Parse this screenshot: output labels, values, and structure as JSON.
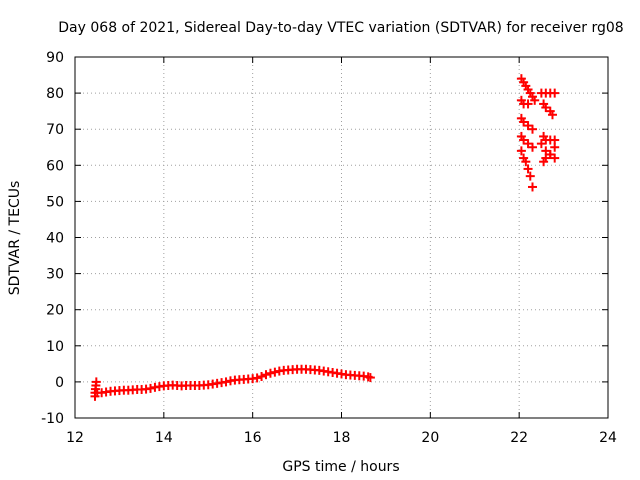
{
  "chart_data": {
    "type": "scatter",
    "title": "Day 068 of 2021, Sidereal Day-to-day VTEC variation (SDTVAR) for receiver rg08",
    "xlabel": "GPS time / hours",
    "ylabel": "SDTVAR / TECUs",
    "xlim": [
      12,
      24
    ],
    "ylim": [
      -10,
      90
    ],
    "x_ticks": [
      12,
      14,
      16,
      18,
      20,
      22,
      24
    ],
    "y_ticks": [
      -10,
      0,
      10,
      20,
      30,
      40,
      50,
      60,
      70,
      80,
      90
    ],
    "grid": true,
    "legend": "none",
    "series": [
      {
        "color": "#ff0000",
        "marker": "plus",
        "points": [
          [
            12.45,
            -4.0
          ],
          [
            12.45,
            -3.0
          ],
          [
            12.46,
            -2.0
          ],
          [
            12.47,
            -1.0
          ],
          [
            12.48,
            0.0
          ],
          [
            12.5,
            -3.0
          ],
          [
            12.6,
            -3.0
          ],
          [
            12.7,
            -2.8
          ],
          [
            12.8,
            -2.6
          ],
          [
            12.9,
            -2.5
          ],
          [
            13.0,
            -2.4
          ],
          [
            13.1,
            -2.3
          ],
          [
            13.2,
            -2.3
          ],
          [
            13.3,
            -2.2
          ],
          [
            13.4,
            -2.1
          ],
          [
            13.5,
            -2.1
          ],
          [
            13.6,
            -2.0
          ],
          [
            13.7,
            -1.8
          ],
          [
            13.8,
            -1.5
          ],
          [
            13.9,
            -1.3
          ],
          [
            14.0,
            -1.1
          ],
          [
            14.1,
            -1.0
          ],
          [
            14.2,
            -0.9
          ],
          [
            14.3,
            -1.0
          ],
          [
            14.4,
            -1.1
          ],
          [
            14.5,
            -1.0
          ],
          [
            14.6,
            -1.0
          ],
          [
            14.7,
            -1.0
          ],
          [
            14.8,
            -1.0
          ],
          [
            14.9,
            -0.9
          ],
          [
            15.0,
            -0.8
          ],
          [
            15.1,
            -0.6
          ],
          [
            15.2,
            -0.4
          ],
          [
            15.3,
            -0.2
          ],
          [
            15.4,
            0.0
          ],
          [
            15.5,
            0.3
          ],
          [
            15.6,
            0.5
          ],
          [
            15.7,
            0.6
          ],
          [
            15.8,
            0.7
          ],
          [
            15.9,
            0.8
          ],
          [
            16.0,
            0.9
          ],
          [
            16.1,
            1.1
          ],
          [
            16.2,
            1.5
          ],
          [
            16.3,
            2.0
          ],
          [
            16.4,
            2.4
          ],
          [
            16.5,
            2.7
          ],
          [
            16.6,
            3.0
          ],
          [
            16.7,
            3.2
          ],
          [
            16.8,
            3.3
          ],
          [
            16.9,
            3.4
          ],
          [
            17.0,
            3.5
          ],
          [
            17.1,
            3.5
          ],
          [
            17.2,
            3.5
          ],
          [
            17.3,
            3.4
          ],
          [
            17.4,
            3.3
          ],
          [
            17.5,
            3.2
          ],
          [
            17.6,
            3.0
          ],
          [
            17.7,
            2.8
          ],
          [
            17.8,
            2.6
          ],
          [
            17.9,
            2.4
          ],
          [
            18.0,
            2.2
          ],
          [
            18.1,
            2.0
          ],
          [
            18.2,
            1.9
          ],
          [
            18.3,
            1.8
          ],
          [
            18.4,
            1.7
          ],
          [
            18.5,
            1.6
          ],
          [
            18.6,
            1.4
          ],
          [
            18.65,
            1.2
          ],
          [
            22.05,
            84.0
          ],
          [
            22.1,
            83.0
          ],
          [
            22.15,
            82.0
          ],
          [
            22.2,
            81.0
          ],
          [
            22.25,
            80.0
          ],
          [
            22.3,
            79.0
          ],
          [
            22.35,
            78.0
          ],
          [
            22.05,
            78.0
          ],
          [
            22.1,
            77.0
          ],
          [
            22.2,
            77.0
          ],
          [
            22.05,
            73.0
          ],
          [
            22.1,
            72.0
          ],
          [
            22.2,
            71.0
          ],
          [
            22.3,
            70.0
          ],
          [
            22.05,
            68.0
          ],
          [
            22.1,
            67.0
          ],
          [
            22.2,
            66.0
          ],
          [
            22.3,
            65.0
          ],
          [
            22.05,
            64.0
          ],
          [
            22.1,
            62.0
          ],
          [
            22.15,
            61.0
          ],
          [
            22.2,
            59.0
          ],
          [
            22.25,
            57.0
          ],
          [
            22.3,
            54.0
          ],
          [
            22.5,
            80.0
          ],
          [
            22.6,
            80.0
          ],
          [
            22.7,
            80.0
          ],
          [
            22.8,
            80.0
          ],
          [
            22.55,
            77.0
          ],
          [
            22.6,
            76.0
          ],
          [
            22.7,
            75.0
          ],
          [
            22.75,
            74.0
          ],
          [
            22.55,
            68.0
          ],
          [
            22.6,
            67.0
          ],
          [
            22.7,
            67.0
          ],
          [
            22.8,
            67.0
          ],
          [
            22.5,
            66.0
          ],
          [
            22.6,
            64.0
          ],
          [
            22.7,
            63.0
          ],
          [
            22.8,
            62.0
          ],
          [
            22.55,
            61.0
          ],
          [
            22.6,
            62.0
          ],
          [
            22.7,
            63.0
          ],
          [
            22.8,
            65.0
          ]
        ]
      }
    ]
  }
}
